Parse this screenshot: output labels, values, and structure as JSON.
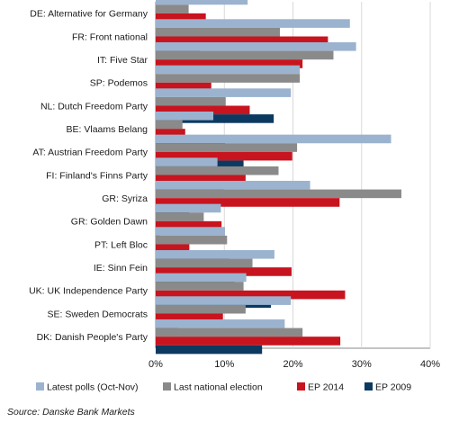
{
  "chart_data": {
    "type": "bar",
    "orientation": "horizontal",
    "categories": [
      "DE: Alternative for Germany",
      "FR: Front national",
      "IT: Five Star",
      "SP: Podemos",
      "NL: Dutch Freedom Party",
      "BE: Vlaams Belang",
      "AT: Austrian Freedom Party",
      "FI: Finland's Finns Party",
      "GR: Syriza",
      "GR: Golden Dawn",
      "PT: Left Bloc",
      "IE: Sinn Fein",
      "UK: UK Independence Party",
      "SE: Sweden Democrats",
      "DK: Danish People's Party"
    ],
    "series": [
      {
        "name": "Latest polls (Oct-Nov)",
        "color": "#9bb3cf",
        "values": [
          13.4,
          28.3,
          29.2,
          21.0,
          19.7,
          8.4,
          34.3,
          9.0,
          22.5,
          9.5,
          10.1,
          17.3,
          13.2,
          19.7,
          18.8
        ]
      },
      {
        "name": "Last national election",
        "color": "#8a8a8a",
        "values": [
          4.8,
          18.1,
          25.9,
          21.0,
          10.2,
          3.9,
          20.6,
          17.9,
          35.8,
          7.0,
          10.4,
          14.1,
          12.8,
          13.1,
          21.4
        ]
      },
      {
        "name": "EP 2014",
        "color": "#c8141e",
        "values": [
          7.3,
          25.1,
          21.4,
          8.1,
          13.7,
          4.3,
          19.9,
          13.1,
          26.8,
          9.6,
          4.9,
          19.8,
          27.6,
          9.8,
          26.9
        ]
      },
      {
        "name": "EP 2009",
        "color": "#0b3960",
        "values": [
          0,
          6.4,
          0,
          0,
          17.2,
          10.1,
          12.8,
          9.9,
          4.9,
          0.6,
          10.7,
          11.5,
          16.8,
          3.3,
          15.5
        ]
      }
    ],
    "x_ticks": [
      "0%",
      "10%",
      "20%",
      "30%",
      "40%"
    ],
    "xlim": [
      0,
      40
    ],
    "grid": true,
    "legend_position": "bottom",
    "source": "Source: Danske Bank Markets"
  }
}
